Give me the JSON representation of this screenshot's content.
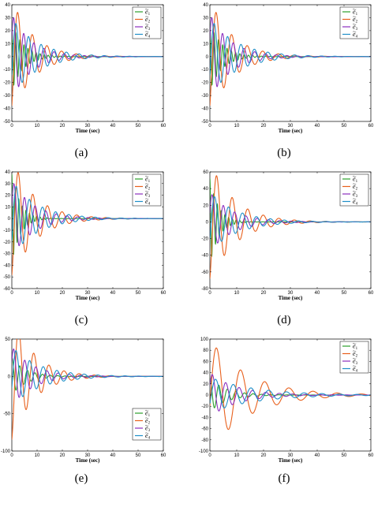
{
  "chart_data": [
    {
      "type": "line",
      "caption": "(a)",
      "xlabel": "Time (sec)",
      "xlim": [
        0,
        60
      ],
      "ylim": [
        -50,
        40
      ],
      "xticks": [
        0,
        10,
        20,
        30,
        40,
        50,
        60
      ],
      "yticks": [
        40,
        30,
        20,
        10,
        0,
        -10,
        -20,
        -30,
        -40,
        -50
      ],
      "legend_position": "top-right",
      "series": [
        {
          "name": "e1",
          "color": "#2ca02c",
          "amplitude": 26,
          "period": 1.6,
          "decay": 0.22,
          "phase": 1.57
        },
        {
          "name": "e2",
          "color": "#e8601c",
          "amplitude": 45,
          "period": 5.8,
          "decay": 0.12,
          "phase": -1.0
        },
        {
          "name": "e3",
          "color": "#8b2fbf",
          "amplitude": 33,
          "period": 4.0,
          "decay": 0.13,
          "phase": 0.4
        },
        {
          "name": "e4",
          "color": "#1f8fc8",
          "amplitude": 30,
          "period": 5.0,
          "decay": 0.1,
          "phase": -0.5
        }
      ]
    },
    {
      "type": "line",
      "caption": "(b)",
      "xlabel": "Time (sec)",
      "xlim": [
        0,
        60
      ],
      "ylim": [
        -50,
        40
      ],
      "xticks": [
        0,
        10,
        20,
        30,
        40,
        50,
        60
      ],
      "yticks": [
        40,
        30,
        20,
        10,
        0,
        -10,
        -20,
        -30,
        -40,
        -50
      ],
      "legend_position": "top-right",
      "series": [
        {
          "name": "e1",
          "color": "#2ca02c",
          "amplitude": 26,
          "period": 1.6,
          "decay": 0.22,
          "phase": 1.57
        },
        {
          "name": "e2",
          "color": "#e8601c",
          "amplitude": 45,
          "period": 5.8,
          "decay": 0.12,
          "phase": -1.0
        },
        {
          "name": "e3",
          "color": "#8b2fbf",
          "amplitude": 33,
          "period": 4.0,
          "decay": 0.13,
          "phase": 0.4
        },
        {
          "name": "e4",
          "color": "#1f8fc8",
          "amplitude": 30,
          "period": 5.0,
          "decay": 0.1,
          "phase": -0.5
        }
      ]
    },
    {
      "type": "line",
      "caption": "(c)",
      "xlabel": "Time (sec)",
      "xlim": [
        0,
        60
      ],
      "ylim": [
        -60,
        40
      ],
      "xticks": [
        0,
        10,
        20,
        30,
        40,
        50,
        60
      ],
      "yticks": [
        40,
        30,
        20,
        10,
        0,
        -10,
        -20,
        -30,
        -40,
        -50,
        -60
      ],
      "legend_position": "top-right",
      "series": [
        {
          "name": "e1",
          "color": "#2ca02c",
          "amplitude": 38,
          "period": 1.4,
          "decay": 0.3,
          "phase": 1.57
        },
        {
          "name": "e2",
          "color": "#e8601c",
          "amplitude": 52,
          "period": 5.8,
          "decay": 0.11,
          "phase": -1.2
        },
        {
          "name": "e3",
          "color": "#8b2fbf",
          "amplitude": 33,
          "period": 4.2,
          "decay": 0.12,
          "phase": 0.3
        },
        {
          "name": "e4",
          "color": "#1f8fc8",
          "amplitude": 33,
          "period": 5.2,
          "decay": 0.1,
          "phase": -0.6
        }
      ]
    },
    {
      "type": "line",
      "caption": "(d)",
      "xlabel": "Time (sec)",
      "xlim": [
        0,
        60
      ],
      "ylim": [
        -80,
        60
      ],
      "xticks": [
        0,
        10,
        20,
        30,
        40,
        50,
        60
      ],
      "yticks": [
        60,
        40,
        20,
        0,
        -20,
        -40,
        -60,
        -80
      ],
      "legend_position": "top-right",
      "series": [
        {
          "name": "e1",
          "color": "#2ca02c",
          "amplitude": 52,
          "period": 1.4,
          "decay": 0.32,
          "phase": 1.57
        },
        {
          "name": "e2",
          "color": "#e8601c",
          "amplitude": 73,
          "period": 5.8,
          "decay": 0.11,
          "phase": -1.2
        },
        {
          "name": "e3",
          "color": "#8b2fbf",
          "amplitude": 36,
          "period": 4.2,
          "decay": 0.12,
          "phase": 0.3
        },
        {
          "name": "e4",
          "color": "#1f8fc8",
          "amplitude": 36,
          "period": 5.2,
          "decay": 0.1,
          "phase": -0.6
        }
      ]
    },
    {
      "type": "line",
      "caption": "(e)",
      "xlabel": "Time (sec)",
      "xlim": [
        0,
        60
      ],
      "ylim": [
        -100,
        50
      ],
      "xticks": [
        0,
        10,
        20,
        30,
        40,
        50,
        60
      ],
      "yticks": [
        50,
        0,
        -50,
        -100
      ],
      "legend_position": "bottom-right",
      "series": [
        {
          "name": "e1",
          "color": "#2ca02c",
          "amplitude": 25,
          "period": 3.0,
          "decay": 0.18,
          "phase": 1.2
        },
        {
          "name": "e2",
          "color": "#e8601c",
          "amplitude": 88,
          "period": 6.0,
          "decay": 0.12,
          "phase": -1.3
        },
        {
          "name": "e3",
          "color": "#8b2fbf",
          "amplitude": 40,
          "period": 4.4,
          "decay": 0.12,
          "phase": 0.5
        },
        {
          "name": "e4",
          "color": "#1f8fc8",
          "amplitude": 40,
          "period": 5.4,
          "decay": 0.09,
          "phase": -0.4
        }
      ]
    },
    {
      "type": "line",
      "caption": "(f)",
      "xlabel": "Time (sec)",
      "xlim": [
        0,
        60
      ],
      "ylim": [
        -100,
        100
      ],
      "xticks": [
        0,
        10,
        20,
        30,
        40,
        50,
        60
      ],
      "yticks": [
        100,
        80,
        60,
        40,
        20,
        0,
        -20,
        -40,
        -60,
        -80,
        -100
      ],
      "legend_position": "top-right",
      "series": [
        {
          "name": "e1",
          "color": "#2ca02c",
          "amplitude": 30,
          "period": 3.2,
          "decay": 0.16,
          "phase": 1.3
        },
        {
          "name": "e2",
          "color": "#e8601c",
          "amplitude": 100,
          "period": 9.0,
          "decay": 0.07,
          "phase": -0.2
        },
        {
          "name": "e3",
          "color": "#8b2fbf",
          "amplitude": 40,
          "period": 5.0,
          "decay": 0.1,
          "phase": 0.4
        },
        {
          "name": "e4",
          "color": "#1f8fc8",
          "amplitude": 32,
          "period": 6.6,
          "decay": 0.06,
          "phase": -0.5
        }
      ]
    }
  ]
}
